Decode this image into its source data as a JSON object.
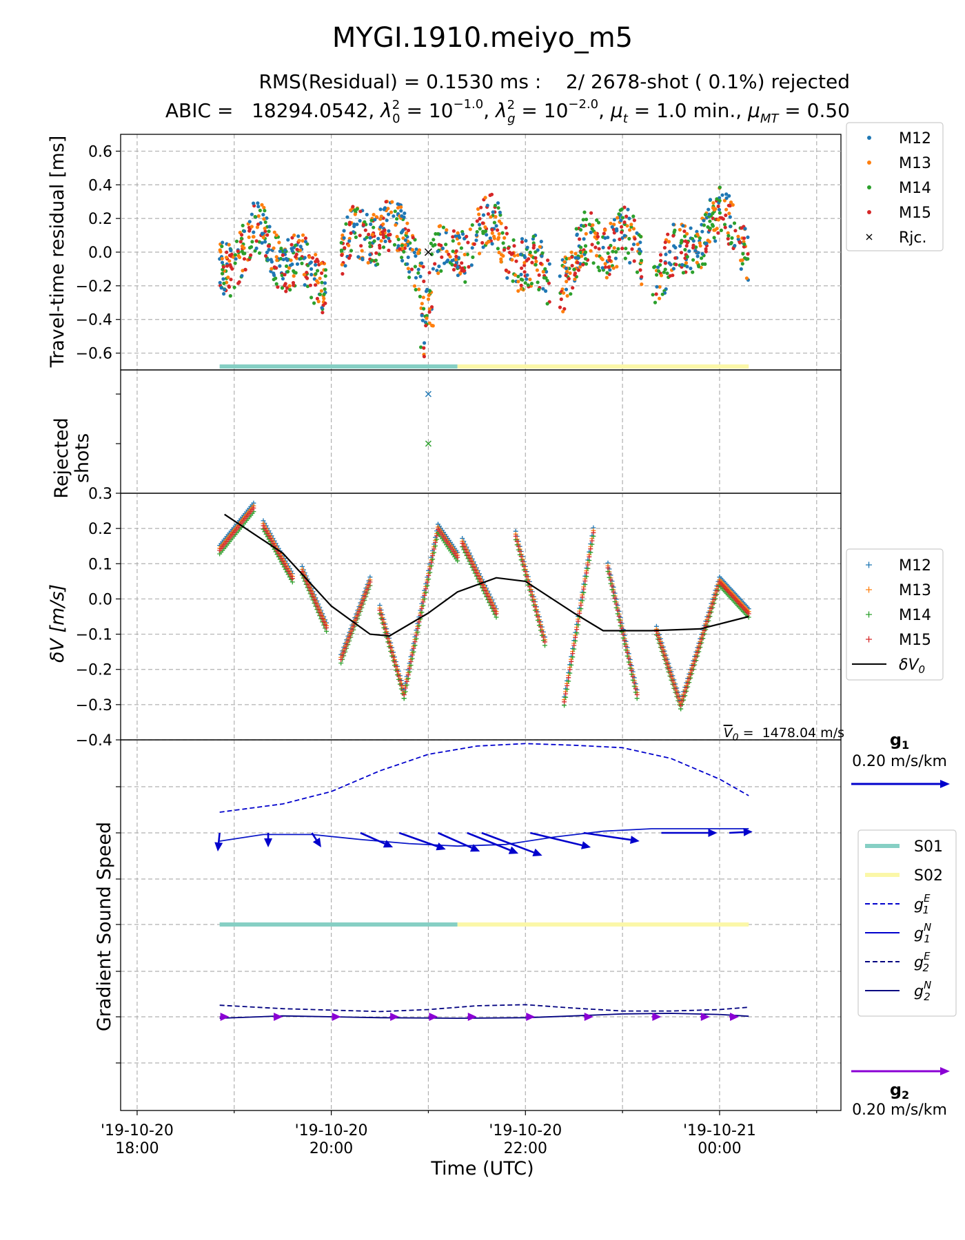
{
  "figure": {
    "title": "MYGI.1910.meiyo_m5",
    "subtitle_line1": "RMS(Residual) = 0.1530 ms :    2/ 2678-shot ( 0.1%) rejected",
    "subtitle_line2_prefix": "ABIC =   18294.0542, ",
    "subtitle_math_l0": "λ",
    "subtitle_math_l0_sub": "0",
    "subtitle_math_l0_sup": "2",
    "subtitle_math_l0_val": " = 10",
    "subtitle_math_l0_exp": "−1.0",
    "subtitle_math_lg": "λ",
    "subtitle_math_lg_sub": "g",
    "subtitle_math_lg_sup": "2",
    "subtitle_math_lg_val": " = 10",
    "subtitle_math_lg_exp": "−2.0",
    "subtitle_mu_t": "μ",
    "subtitle_mu_t_sub": "t",
    "subtitle_mu_t_val": " = 1.0 min., ",
    "subtitle_mu_mt": "μ",
    "subtitle_mu_mt_sub": "MT",
    "subtitle_mu_mt_val": " = 0.50",
    "xlabel": "Time (UTC)",
    "xticks": [
      {
        "line1": "'19-10-20",
        "line2": "18:00"
      },
      {
        "line1": "'19-10-20",
        "line2": "20:00"
      },
      {
        "line1": "'19-10-20",
        "line2": "22:00"
      },
      {
        "line1": "'19-10-21",
        "line2": "00:00"
      }
    ]
  },
  "colors": {
    "M12": "#1f77b4",
    "M13": "#ff7f0e",
    "M14": "#2ca02c",
    "M15": "#d62728",
    "S01": "#86cfc4",
    "S02": "#fbf7a8",
    "g1": "#0000cc",
    "g1N": "#0a17c8",
    "g2": "#000080",
    "g2arrow": "#8a00d4",
    "dV0": "#000000"
  },
  "chart_data": [
    {
      "type": "scatter",
      "panel": "residual",
      "ylabel": "Travel-time residual [ms]",
      "ylim": [
        -0.7,
        0.7
      ],
      "yticks": [
        "0.6",
        "0.4",
        "0.2",
        "0.0",
        "−0.2",
        "−0.4",
        "−0.6"
      ],
      "xlim": [
        "2019-10-20 17:50",
        "2019-10-21 01:15"
      ],
      "series": [
        {
          "name": "M12",
          "marker": "dot"
        },
        {
          "name": "M13",
          "marker": "dot"
        },
        {
          "name": "M14",
          "marker": "dot"
        },
        {
          "name": "M15",
          "marker": "dot"
        }
      ],
      "rejected": {
        "name": "Rjc.",
        "marker": "x",
        "points": [
          {
            "x": "2019-10-20 21:00",
            "y": 0.0
          }
        ]
      },
      "envelope_hours": [
        18.8,
        19.1,
        19.5,
        19.9,
        20.3,
        20.7,
        21.0,
        21.3,
        21.7,
        22.1,
        22.5,
        22.9,
        23.3,
        23.7,
        0.1,
        0.3
      ],
      "legend": "top-right-outside",
      "grid": true
    },
    {
      "type": "scatter",
      "panel": "rejected",
      "ylabel_line1": "Rejected",
      "ylabel_line2": "shots",
      "points": [
        {
          "series": "M12",
          "x": "2019-10-20 21:00"
        },
        {
          "series": "M14",
          "x": "2019-10-20 21:00"
        }
      ]
    },
    {
      "type": "line",
      "panel": "dV",
      "ylabel": "δV [m/s]",
      "ylim": [
        -0.4,
        0.3
      ],
      "yticks": [
        "0.3",
        "0.2",
        "0.1",
        "0.0",
        "−0.1",
        "−0.2",
        "−0.3",
        "−0.4"
      ],
      "series": [
        {
          "name": "M12",
          "marker": "+"
        },
        {
          "name": "M13",
          "marker": "+"
        },
        {
          "name": "M14",
          "marker": "+"
        },
        {
          "name": "M15",
          "marker": "+"
        }
      ],
      "dV0_name": "δV",
      "dV0_sub": "0",
      "dV0_curve": [
        [
          18.9,
          0.24
        ],
        [
          19.5,
          0.13
        ],
        [
          20.0,
          -0.02
        ],
        [
          20.4,
          -0.1
        ],
        [
          20.6,
          -0.105
        ],
        [
          21.0,
          -0.04
        ],
        [
          21.3,
          0.02
        ],
        [
          21.7,
          0.06
        ],
        [
          22.0,
          0.05
        ],
        [
          22.5,
          -0.04
        ],
        [
          22.8,
          -0.09
        ],
        [
          23.3,
          -0.09
        ],
        [
          23.8,
          -0.085
        ],
        [
          0.3,
          -0.05
        ]
      ],
      "segments": [
        {
          "t0": 18.85,
          "t1": 19.2,
          "v0": 0.14,
          "v1": 0.26
        },
        {
          "t0": 19.3,
          "t1": 19.6,
          "v0": 0.21,
          "v1": 0.06
        },
        {
          "t0": 19.7,
          "t1": 19.95,
          "v0": 0.08,
          "v1": -0.08
        },
        {
          "t0": 20.1,
          "t1": 20.4,
          "v0": -0.17,
          "v1": 0.05
        },
        {
          "t0": 20.5,
          "t1": 20.75,
          "v0": -0.03,
          "v1": -0.27
        },
        {
          "t0": 20.75,
          "t1": 21.1,
          "v0": -0.27,
          "v1": 0.2
        },
        {
          "t0": 21.1,
          "t1": 21.3,
          "v0": 0.2,
          "v1": 0.12
        },
        {
          "t0": 21.35,
          "t1": 21.7,
          "v0": 0.16,
          "v1": -0.04
        },
        {
          "t0": 21.9,
          "t1": 22.2,
          "v0": 0.18,
          "v1": -0.12
        },
        {
          "t0": 22.4,
          "t1": 22.7,
          "v0": -0.29,
          "v1": 0.19
        },
        {
          "t0": 22.85,
          "t1": 23.15,
          "v0": 0.09,
          "v1": -0.27
        },
        {
          "t0": 23.35,
          "t1": 23.6,
          "v0": -0.09,
          "v1": -0.3
        },
        {
          "t0": 23.6,
          "t1": 24.0,
          "v0": -0.3,
          "v1": 0.05
        },
        {
          "t0": 24.0,
          "t1": 24.3,
          "v0": 0.05,
          "v1": -0.04
        }
      ],
      "v0_label": "V",
      "v0_sub": "0",
      "v0_value": " =  1478.04 m/s"
    },
    {
      "type": "line",
      "panel": "gradient",
      "ylabel": "Gradient Sound Speed",
      "g1_label": "g",
      "g1_sub": "1",
      "g1_scale": "0.20 m/s/km",
      "g2_label": "g",
      "g2_sub": "2",
      "g2_scale": "0.20 m/s/km",
      "legend": [
        {
          "name": "S01",
          "style": "thick"
        },
        {
          "name": "S02",
          "style": "thick"
        },
        {
          "name": "g",
          "sub": "1",
          "sup": "E",
          "style": "dashed"
        },
        {
          "name": "g",
          "sub": "1",
          "sup": "N",
          "style": "solid"
        },
        {
          "name": "g",
          "sub": "2",
          "sup": "E",
          "style": "dashed"
        },
        {
          "name": "g",
          "sub": "2",
          "sup": "N",
          "style": "solid"
        }
      ],
      "subsets": [
        {
          "name": "S01",
          "start": 18.85,
          "end": 21.3
        },
        {
          "name": "S02",
          "start": 21.3,
          "end": 24.3
        }
      ],
      "g1E": [
        [
          18.85,
          0.25
        ],
        [
          19.5,
          0.35
        ],
        [
          20.0,
          0.5
        ],
        [
          20.5,
          0.75
        ],
        [
          21.0,
          0.95
        ],
        [
          21.5,
          1.05
        ],
        [
          22.0,
          1.08
        ],
        [
          22.5,
          1.06
        ],
        [
          23.0,
          1.03
        ],
        [
          23.5,
          0.9
        ],
        [
          24.0,
          0.65
        ],
        [
          24.3,
          0.45
        ]
      ],
      "g1N": [
        [
          18.85,
          -0.1
        ],
        [
          19.3,
          -0.02
        ],
        [
          19.8,
          -0.02
        ],
        [
          20.3,
          -0.08
        ],
        [
          20.8,
          -0.13
        ],
        [
          21.3,
          -0.16
        ],
        [
          21.8,
          -0.14
        ],
        [
          22.3,
          -0.05
        ],
        [
          22.8,
          0.02
        ],
        [
          23.3,
          0.05
        ],
        [
          23.8,
          0.05
        ],
        [
          24.3,
          0.05
        ]
      ],
      "g2E": [
        [
          18.85,
          0.4
        ],
        [
          19.5,
          0.28
        ],
        [
          20.5,
          0.18
        ],
        [
          21.0,
          0.25
        ],
        [
          21.5,
          0.38
        ],
        [
          22.0,
          0.42
        ],
        [
          22.5,
          0.3
        ],
        [
          23.0,
          0.2
        ],
        [
          23.5,
          0.2
        ],
        [
          24.0,
          0.25
        ],
        [
          24.3,
          0.33
        ]
      ],
      "g2N": [
        [
          18.85,
          -0.05
        ],
        [
          19.5,
          0.03
        ],
        [
          20.5,
          -0.03
        ],
        [
          21.3,
          -0.05
        ],
        [
          22.0,
          -0.03
        ],
        [
          22.5,
          0.03
        ],
        [
          23.0,
          0.1
        ],
        [
          23.5,
          0.12
        ],
        [
          24.0,
          0.08
        ],
        [
          24.3,
          0.02
        ]
      ],
      "g1_arrows": [
        {
          "t": 18.85,
          "ex": -0.02,
          "ey": -0.45
        },
        {
          "t": 19.35,
          "ex": 0.0,
          "ey": -0.35
        },
        {
          "t": 19.8,
          "ex": 0.1,
          "ey": -0.35
        },
        {
          "t": 20.3,
          "ex": 0.35,
          "ey": -0.35
        },
        {
          "t": 20.7,
          "ex": 0.5,
          "ey": -0.4
        },
        {
          "t": 21.1,
          "ex": 0.45,
          "ey": -0.45
        },
        {
          "t": 21.4,
          "ex": 0.55,
          "ey": -0.5
        },
        {
          "t": 21.55,
          "ex": 0.65,
          "ey": -0.55
        },
        {
          "t": 22.05,
          "ex": 0.65,
          "ey": -0.35
        },
        {
          "t": 22.6,
          "ex": 0.6,
          "ey": -0.2
        },
        {
          "t": 23.4,
          "ex": 0.6,
          "ey": 0.0
        },
        {
          "t": 24.1,
          "ex": 0.25,
          "ey": 0.03
        }
      ],
      "g2_arrows_hours": [
        18.85,
        19.4,
        20.0,
        20.6,
        21.0,
        21.4,
        22.0,
        22.6,
        23.3,
        23.8,
        24.1
      ]
    }
  ]
}
